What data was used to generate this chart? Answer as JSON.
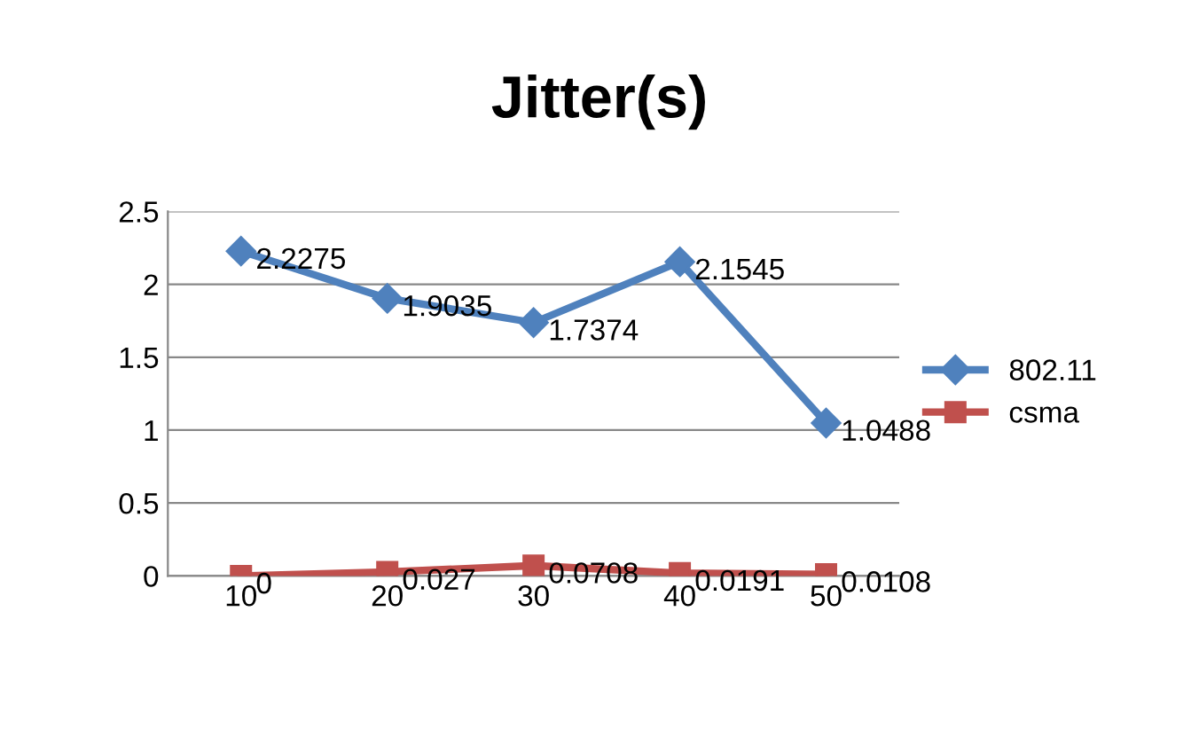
{
  "chart_data": {
    "type": "line",
    "title": "Jitter(s)",
    "categories": [
      "10",
      "20",
      "30",
      "40",
      "50"
    ],
    "series": [
      {
        "name": "802.11",
        "color": "#4f81bd",
        "marker": "diamond",
        "values": [
          2.2275,
          1.9035,
          1.7374,
          2.1545,
          1.0488
        ]
      },
      {
        "name": "csma",
        "color": "#c0504d",
        "marker": "square",
        "values": [
          0,
          0.027,
          0.0708,
          0.0191,
          0.0108
        ]
      }
    ],
    "ylim": [
      0,
      2.5
    ],
    "yticks": [
      0,
      0.5,
      1,
      1.5,
      2,
      2.5
    ],
    "grid": "y",
    "legend": "right",
    "data_labels": true,
    "line_style": "solid"
  }
}
